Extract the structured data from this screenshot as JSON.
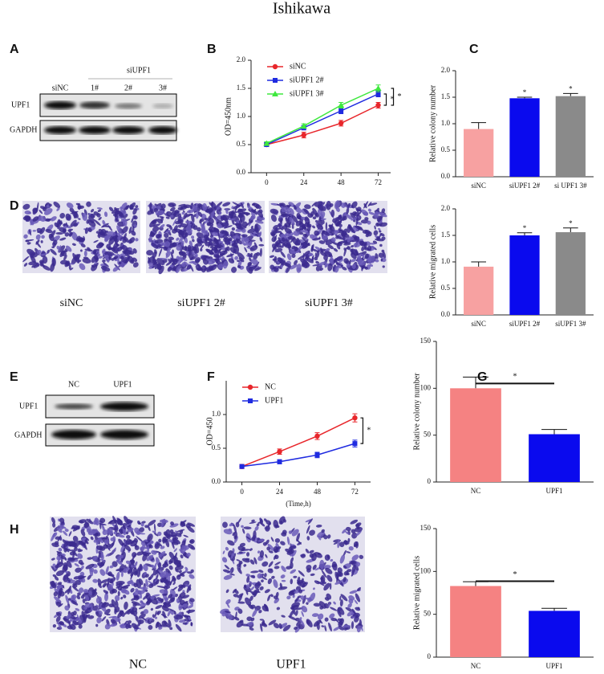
{
  "title": "Ishikawa",
  "panels": {
    "A": {
      "letter": "A",
      "group": "siUPF1",
      "lanes": [
        "siNC",
        "1#",
        "2#",
        "3#"
      ],
      "rows": [
        "UPF1",
        "GAPDH"
      ]
    },
    "D": {
      "letter": "D",
      "captions": [
        "siNC",
        "siUPF1 2#",
        "siUPF1 3#"
      ]
    },
    "E": {
      "letter": "E",
      "lanes": [
        "NC",
        "UPF1"
      ],
      "rows": [
        "UPF1",
        "GAPDH"
      ]
    },
    "H": {
      "letter": "H",
      "captions": [
        "NC",
        "UPF1"
      ]
    }
  },
  "chart_data": [
    {
      "type": "line",
      "panel": "B",
      "ylabel": "OD=450nm",
      "x": [
        0,
        24,
        48,
        72
      ],
      "xlim": [
        -10,
        80
      ],
      "xticks": [
        0,
        24,
        48,
        72
      ],
      "ylim": [
        0,
        2
      ],
      "yticks": [
        {
          "value": 0,
          "label": "0.0"
        },
        0.5,
        {
          "value": 1,
          "label": "1.0"
        },
        1.5,
        {
          "value": 2,
          "label": "2.0"
        }
      ],
      "series": [
        {
          "name": "siNC",
          "color": "#e8262b",
          "marker": "circle",
          "values": [
            0.5,
            0.67,
            0.88,
            1.2
          ],
          "errors": [
            0.03,
            0.05,
            0.05,
            0.05
          ]
        },
        {
          "name": "siUPF1 2#",
          "color": "#1f2be0",
          "marker": "square",
          "values": [
            0.5,
            0.8,
            1.1,
            1.4
          ],
          "errors": [
            0.03,
            0.04,
            0.05,
            0.05
          ]
        },
        {
          "name": "siUPF1 3#",
          "color": "#3ee83e",
          "marker": "triangle",
          "values": [
            0.52,
            0.83,
            1.2,
            1.5
          ],
          "errors": [
            0.03,
            0.04,
            0.05,
            0.06
          ]
        }
      ],
      "annotations": [
        "*",
        "*"
      ]
    },
    {
      "type": "bar",
      "panel": "C",
      "ylabel": "Relative colony number",
      "categories": [
        "siNC",
        "siUPF1 2#",
        "si UPF1 3#"
      ],
      "values": [
        0.9,
        1.48,
        1.52
      ],
      "errors": [
        0.12,
        0.02,
        0.05
      ],
      "colors": [
        "#f7a1a1",
        "#0a0aee",
        "#8a8a8a"
      ],
      "ylim": [
        0,
        2
      ],
      "yticks": [
        {
          "value": 0,
          "label": "0.0"
        },
        0.5,
        {
          "value": 1,
          "label": "1.0"
        },
        1.5,
        {
          "value": 2,
          "label": "2.0"
        }
      ],
      "annotations": [
        "*",
        "*"
      ]
    },
    {
      "type": "bar",
      "panel": "D",
      "ylabel": "Relative migrated cells",
      "categories": [
        "siNC",
        "siUPF1 2#",
        "siUPF1 3#"
      ],
      "values": [
        0.91,
        1.5,
        1.56
      ],
      "errors": [
        0.09,
        0.05,
        0.08
      ],
      "colors": [
        "#f7a1a1",
        "#0a0aee",
        "#8a8a8a"
      ],
      "ylim": [
        0,
        2
      ],
      "yticks": [
        {
          "value": 0,
          "label": "0.0"
        },
        0.5,
        {
          "value": 1,
          "label": "1.0"
        },
        1.5,
        {
          "value": 2,
          "label": "2.0"
        }
      ],
      "annotations": [
        "*",
        "*"
      ]
    },
    {
      "type": "line",
      "panel": "F",
      "ylabel": "OD=450",
      "xlabel": "(Time,h)",
      "x": [
        0,
        24,
        48,
        72
      ],
      "xlim": [
        -10,
        82
      ],
      "xticks": [
        0,
        24,
        48,
        72
      ],
      "ylim": [
        0,
        1.5
      ],
      "yticks": [
        {
          "value": 0,
          "label": "0.0"
        },
        0.5,
        {
          "value": 1,
          "label": "1.0"
        }
      ],
      "series": [
        {
          "name": "NC",
          "color": "#e8262b",
          "marker": "circle",
          "values": [
            0.23,
            0.45,
            0.68,
            0.95
          ],
          "errors": [
            0.03,
            0.04,
            0.05,
            0.06
          ]
        },
        {
          "name": "UPF1",
          "color": "#1f2be0",
          "marker": "square",
          "values": [
            0.23,
            0.3,
            0.4,
            0.57
          ],
          "errors": [
            0.02,
            0.03,
            0.04,
            0.05
          ]
        }
      ],
      "annotations": [
        "*"
      ]
    },
    {
      "type": "bar",
      "panel": "G",
      "ylabel": "Relative colony number",
      "categories": [
        "NC",
        "UPF1"
      ],
      "values": [
        100,
        51
      ],
      "errors": [
        12,
        5
      ],
      "colors": [
        "#f58282",
        "#0a0aee"
      ],
      "ylim": [
        0,
        150
      ],
      "yticks": [
        0,
        50,
        100,
        150
      ],
      "annotations": [
        "*"
      ]
    },
    {
      "type": "bar",
      "panel": null,
      "ylabel": "Relative migrated cells",
      "categories": [
        "NC",
        "UPF1"
      ],
      "values": [
        83,
        54
      ],
      "errors": [
        5,
        3
      ],
      "colors": [
        "#f58282",
        "#0a0aee"
      ],
      "ylim": [
        0,
        150
      ],
      "yticks": [
        0,
        50,
        100,
        150
      ],
      "annotations": [
        "*"
      ]
    }
  ]
}
